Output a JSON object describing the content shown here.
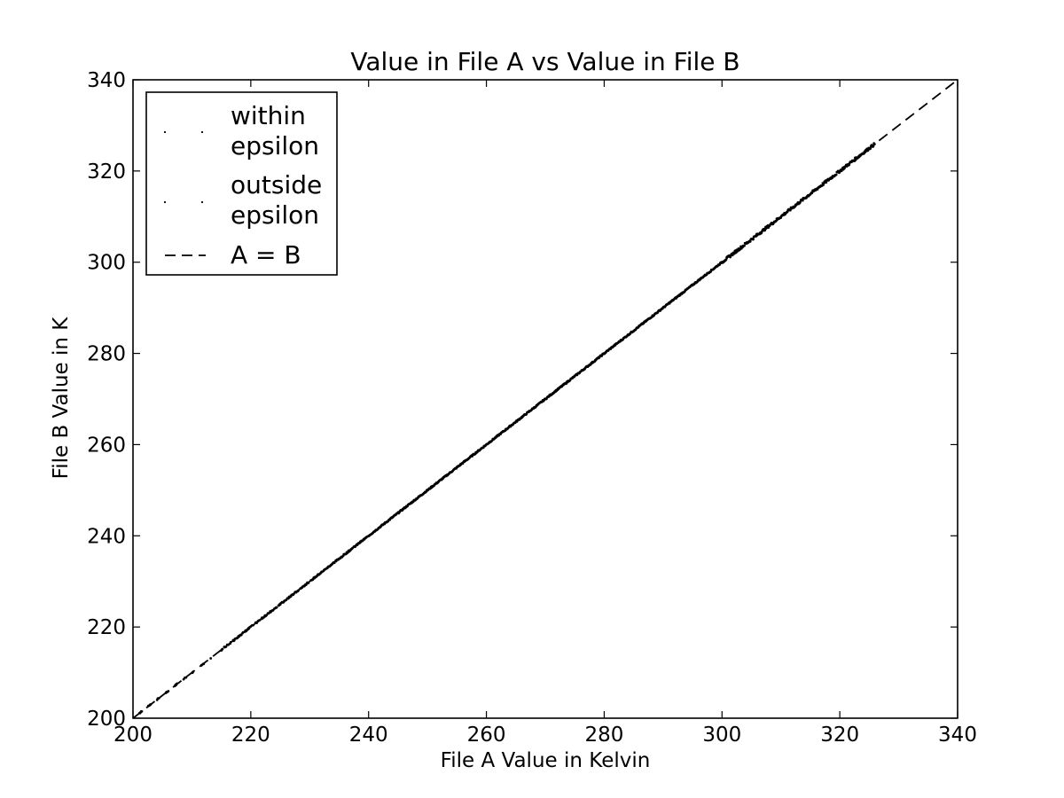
{
  "chart_data": {
    "type": "scatter",
    "title": "Value in File A vs Value in File B",
    "xlabel": "File A Value in Kelvin",
    "ylabel": "File B Value in K",
    "xlim": [
      200,
      340
    ],
    "ylim": [
      200,
      340
    ],
    "xticks": [
      "200",
      "220",
      "240",
      "260",
      "280",
      "300",
      "320",
      "340"
    ],
    "yticks": [
      "200",
      "220",
      "240",
      "260",
      "280",
      "300",
      "320",
      "340"
    ],
    "grid": false,
    "legend_position": "top-left",
    "series": [
      {
        "name": "within\nepsilon",
        "legend_lines": [
          "within",
          "epsilon"
        ],
        "marker": "point",
        "color": "#000000",
        "x_range": [
          200,
          326
        ],
        "relation": "y = x"
      },
      {
        "name": "outside\nepsilon",
        "legend_lines": [
          "outside",
          "epsilon"
        ],
        "marker": "point",
        "color": "#000000",
        "x_range": [],
        "relation": "y = x"
      },
      {
        "name": "A = B",
        "legend_lines": [
          "A = B"
        ],
        "style": "dashed",
        "color": "#000000",
        "x": [
          200,
          340
        ],
        "y": [
          200,
          340
        ]
      }
    ]
  }
}
